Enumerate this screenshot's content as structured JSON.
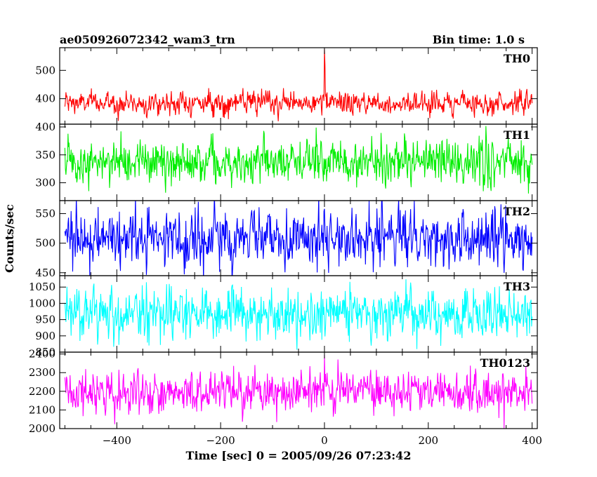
{
  "chart_data": {
    "type": "line",
    "title": "ae050926072342_wam3_trn",
    "bin_time_label": "Bin time: 1.0 s",
    "xlabel": "Time [sec] 0 = 2005/09/26 07:23:42",
    "ylabel": "Counts/sec",
    "xlim": [
      -510,
      410
    ],
    "xticks": [
      -400,
      -200,
      0,
      200,
      400
    ],
    "xtick_labels": [
      "−400",
      "−200",
      "0",
      "200",
      "400"
    ],
    "grid": false,
    "panels": [
      {
        "name": "TH0",
        "color": "#ff0000",
        "ylim": [
          310,
          580
        ],
        "yticks": [
          400,
          500
        ],
        "ytick_labels": [
          "400",
          "500"
        ],
        "x_range": [
          -500,
          400
        ],
        "baseline": 385,
        "noise": 20,
        "spikes": [
          {
            "x": 0,
            "y": 575
          },
          {
            "x": 1,
            "y": 520
          }
        ]
      },
      {
        "name": "TH1",
        "color": "#00ee00",
        "ylim": [
          268,
          405
        ],
        "yticks": [
          300,
          350,
          400
        ],
        "ytick_labels": [
          "300",
          "350",
          "400"
        ],
        "x_range": [
          -500,
          400
        ],
        "baseline": 338,
        "noise": 20,
        "spikes": []
      },
      {
        "name": "TH2",
        "color": "#0000ff",
        "ylim": [
          445,
          572
        ],
        "yticks": [
          450,
          500,
          550
        ],
        "ytick_labels": [
          "450",
          "500",
          "550"
        ],
        "x_range": [
          -500,
          400
        ],
        "baseline": 508,
        "noise": 24,
        "spikes": []
      },
      {
        "name": "TH3",
        "color": "#00ffff",
        "ylim": [
          850,
          1085
        ],
        "yticks": [
          850,
          900,
          950,
          1000,
          1050
        ],
        "ytick_labels": [
          "850",
          "900",
          "950",
          "1000",
          "1050"
        ],
        "x_range": [
          -500,
          400
        ],
        "baseline": 965,
        "noise": 38,
        "spikes": []
      },
      {
        "name": "TH0123",
        "color": "#ff00ff",
        "ylim": [
          2000,
          2410
        ],
        "yticks": [
          2000,
          2100,
          2200,
          2300,
          2400
        ],
        "ytick_labels": [
          "2000",
          "2100",
          "2200",
          "2300",
          "2400"
        ],
        "x_range": [
          -500,
          400
        ],
        "baseline": 2195,
        "noise": 55,
        "spikes": [
          {
            "x": 0,
            "y": 2395
          }
        ]
      }
    ]
  }
}
